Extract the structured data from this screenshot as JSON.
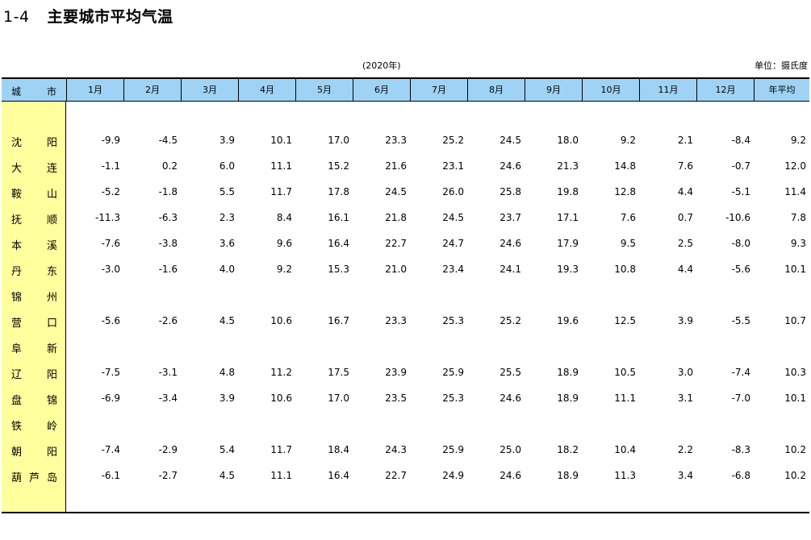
{
  "header": {
    "number": "1-4",
    "title": "主要城市平均气温",
    "year_note": "(2020年)",
    "unit": "单位：摄氏度"
  },
  "columns": {
    "city_label_left": "城",
    "city_label_right": "市",
    "months": [
      "1月",
      "2月",
      "3月",
      "4月",
      "5月",
      "6月",
      "7月",
      "8月",
      "9月",
      "10月",
      "11月",
      "12月",
      "年平均"
    ]
  },
  "rows": [
    {
      "city": [
        "沈",
        "阳"
      ],
      "values": [
        "-9.9",
        "-4.5",
        "3.9",
        "10.1",
        "17.0",
        "23.3",
        "25.2",
        "24.5",
        "18.0",
        "9.2",
        "2.1",
        "-8.4",
        "9.2"
      ]
    },
    {
      "city": [
        "大",
        "连"
      ],
      "values": [
        "-1.1",
        "0.2",
        "6.0",
        "11.1",
        "15.2",
        "21.6",
        "23.1",
        "24.6",
        "21.3",
        "14.8",
        "7.6",
        "-0.7",
        "12.0"
      ]
    },
    {
      "city": [
        "鞍",
        "山"
      ],
      "values": [
        "-5.2",
        "-1.8",
        "5.5",
        "11.7",
        "17.8",
        "24.5",
        "26.0",
        "25.8",
        "19.8",
        "12.8",
        "4.4",
        "-5.1",
        "11.4"
      ]
    },
    {
      "city": [
        "抚",
        "顺"
      ],
      "values": [
        "-11.3",
        "-6.3",
        "2.3",
        "8.4",
        "16.1",
        "21.8",
        "24.5",
        "23.7",
        "17.1",
        "7.6",
        "0.7",
        "-10.6",
        "7.8"
      ]
    },
    {
      "city": [
        "本",
        "溪"
      ],
      "values": [
        "-7.6",
        "-3.8",
        "3.6",
        "9.6",
        "16.4",
        "22.7",
        "24.7",
        "24.6",
        "17.9",
        "9.5",
        "2.5",
        "-8.0",
        "9.3"
      ]
    },
    {
      "city": [
        "丹",
        "东"
      ],
      "values": [
        "-3.0",
        "-1.6",
        "4.0",
        "9.2",
        "15.3",
        "21.0",
        "23.4",
        "24.1",
        "19.3",
        "10.8",
        "4.4",
        "-5.6",
        "10.1"
      ]
    },
    {
      "city": [
        "锦",
        "州"
      ],
      "values": [
        "",
        "",
        "",
        "",
        "",
        "",
        "",
        "",
        "",
        "",
        "",
        "",
        ""
      ]
    },
    {
      "city": [
        "营",
        "口"
      ],
      "values": [
        "-5.6",
        "-2.6",
        "4.5",
        "10.6",
        "16.7",
        "23.3",
        "25.3",
        "25.2",
        "19.6",
        "12.5",
        "3.9",
        "-5.5",
        "10.7"
      ]
    },
    {
      "city": [
        "阜",
        "新"
      ],
      "values": [
        "",
        "",
        "",
        "",
        "",
        "",
        "",
        "",
        "",
        "",
        "",
        "",
        ""
      ]
    },
    {
      "city": [
        "辽",
        "阳"
      ],
      "values": [
        "-7.5",
        "-3.1",
        "4.8",
        "11.2",
        "17.5",
        "23.9",
        "25.9",
        "25.5",
        "18.9",
        "10.5",
        "3.0",
        "-7.4",
        "10.3"
      ]
    },
    {
      "city": [
        "盘",
        "锦"
      ],
      "values": [
        "-6.9",
        "-3.4",
        "3.9",
        "10.6",
        "17.0",
        "23.5",
        "25.3",
        "24.6",
        "18.9",
        "11.1",
        "3.1",
        "-7.0",
        "10.1"
      ]
    },
    {
      "city": [
        "铁",
        "岭"
      ],
      "values": [
        "",
        "",
        "",
        "",
        "",
        "",
        "",
        "",
        "",
        "",
        "",
        "",
        ""
      ]
    },
    {
      "city": [
        "朝",
        "阳"
      ],
      "values": [
        "-7.4",
        "-2.9",
        "5.4",
        "11.7",
        "18.4",
        "24.3",
        "25.9",
        "25.0",
        "18.2",
        "10.4",
        "2.2",
        "-8.3",
        "10.2"
      ]
    },
    {
      "city": [
        "葫",
        "芦",
        "岛"
      ],
      "values": [
        "-6.1",
        "-2.7",
        "4.5",
        "11.1",
        "16.4",
        "22.7",
        "24.9",
        "24.6",
        "18.9",
        "11.3",
        "3.4",
        "-6.8",
        "10.2"
      ]
    }
  ]
}
